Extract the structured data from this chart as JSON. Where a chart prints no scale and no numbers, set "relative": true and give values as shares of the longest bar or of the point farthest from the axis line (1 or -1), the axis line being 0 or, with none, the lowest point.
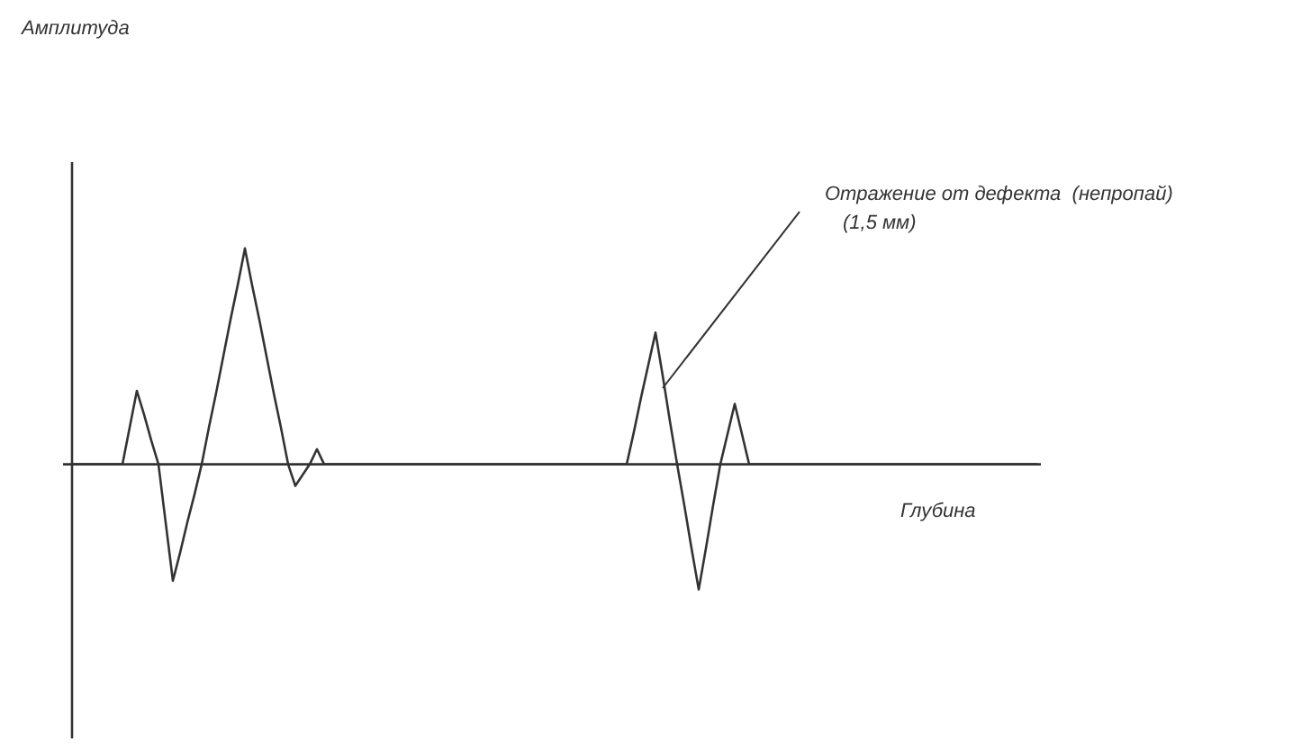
{
  "chart_data": {
    "type": "line",
    "relative": true,
    "marker": "none",
    "color": "#333333",
    "xlabel": "Глубина",
    "annotations": [
      "Амплитуда",
      "Отражение от дефекта  (непропай)",
      "(1,5 мм)"
    ],
    "categories": [
      null,
      null,
      null,
      null,
      null,
      null,
      null,
      null,
      null,
      null,
      null,
      null,
      null,
      null,
      null,
      null,
      null,
      null,
      null,
      null,
      null,
      null,
      null,
      null,
      null,
      null,
      null,
      null,
      null,
      null,
      null,
      null,
      null,
      null,
      null,
      null,
      null,
      null,
      null,
      null,
      null,
      null,
      null,
      null,
      null,
      null,
      null,
      null,
      null,
      null,
      null,
      null,
      null,
      null,
      null,
      null,
      null,
      null,
      null,
      null,
      null,
      null,
      null,
      null,
      null,
      null,
      null,
      null,
      null,
      null,
      null,
      null,
      null,
      null,
      null,
      null,
      null,
      null,
      null,
      null,
      null,
      null,
      null,
      null,
      null,
      null,
      null,
      null,
      null,
      null,
      null,
      null,
      null,
      null,
      null,
      null,
      null,
      null,
      null,
      null,
      null,
      null,
      null,
      null,
      null,
      null,
      null,
      null,
      null,
      null,
      null,
      null,
      null,
      null,
      null,
      null,
      null,
      null,
      null,
      null,
      null,
      null,
      null,
      null,
      null,
      null,
      null,
      null,
      null,
      null,
      null,
      null,
      null,
      null,
      null
    ],
    "values": [
      0,
      0,
      0,
      0,
      0,
      0,
      0,
      0,
      0.17,
      0.34,
      0.23,
      0.11,
      0,
      -0.27,
      -0.54,
      -0.41,
      -0.27,
      -0.14,
      0,
      0.17,
      0.33,
      0.5,
      0.67,
      0.83,
      1,
      0.83,
      0.67,
      0.5,
      0.33,
      0.17,
      0,
      -0.1,
      -0.05,
      0,
      0.07,
      0,
      0,
      0,
      0,
      0,
      0,
      0,
      0,
      0,
      0,
      0,
      0,
      0,
      0,
      0,
      0,
      0,
      0,
      0,
      0,
      0,
      0,
      0,
      0,
      0,
      0,
      0,
      0,
      0,
      0,
      0,
      0,
      0,
      0,
      0,
      0,
      0,
      0,
      0,
      0,
      0,
      0,
      0,
      0.15,
      0.31,
      0.46,
      0.61,
      0.41,
      0.2,
      0,
      -0.19,
      -0.39,
      -0.58,
      -0.39,
      -0.19,
      0,
      0.14,
      0.28,
      0.14,
      0,
      0,
      0,
      0,
      0,
      0,
      0,
      0,
      0,
      0,
      0,
      0,
      0,
      0,
      0,
      0,
      0,
      0,
      0,
      0,
      0,
      0,
      0,
      0,
      0,
      0,
      0,
      0,
      0,
      0,
      0,
      0,
      0,
      0,
      0,
      0,
      0,
      0,
      0,
      0,
      0
    ]
  }
}
